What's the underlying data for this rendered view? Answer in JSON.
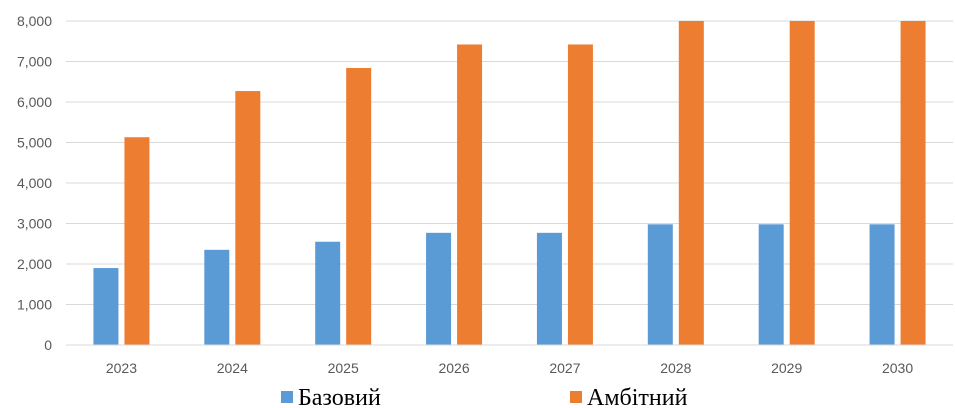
{
  "chart_data": {
    "type": "bar",
    "categories": [
      "2023",
      "2024",
      "2025",
      "2026",
      "2027",
      "2028",
      "2029",
      "2030"
    ],
    "series": [
      {
        "name": "Базовий",
        "color": "#5b9bd5",
        "values": [
          1900,
          2350,
          2550,
          2770,
          2770,
          2980,
          2980,
          2980
        ]
      },
      {
        "name": "Амбітний",
        "color": "#ed7d31",
        "values": [
          5130,
          6270,
          6840,
          7420,
          7420,
          8000,
          8000,
          8000
        ]
      }
    ],
    "y_ticks": [
      "0",
      "1,000",
      "2,000",
      "3,000",
      "4,000",
      "5,000",
      "6,000",
      "7,000",
      "8,000"
    ],
    "ylim": [
      0,
      8000
    ],
    "grid": true,
    "gridline_color": "#d9d9d9",
    "legend_position": "bottom",
    "title": "",
    "xlabel": "",
    "ylabel": ""
  }
}
